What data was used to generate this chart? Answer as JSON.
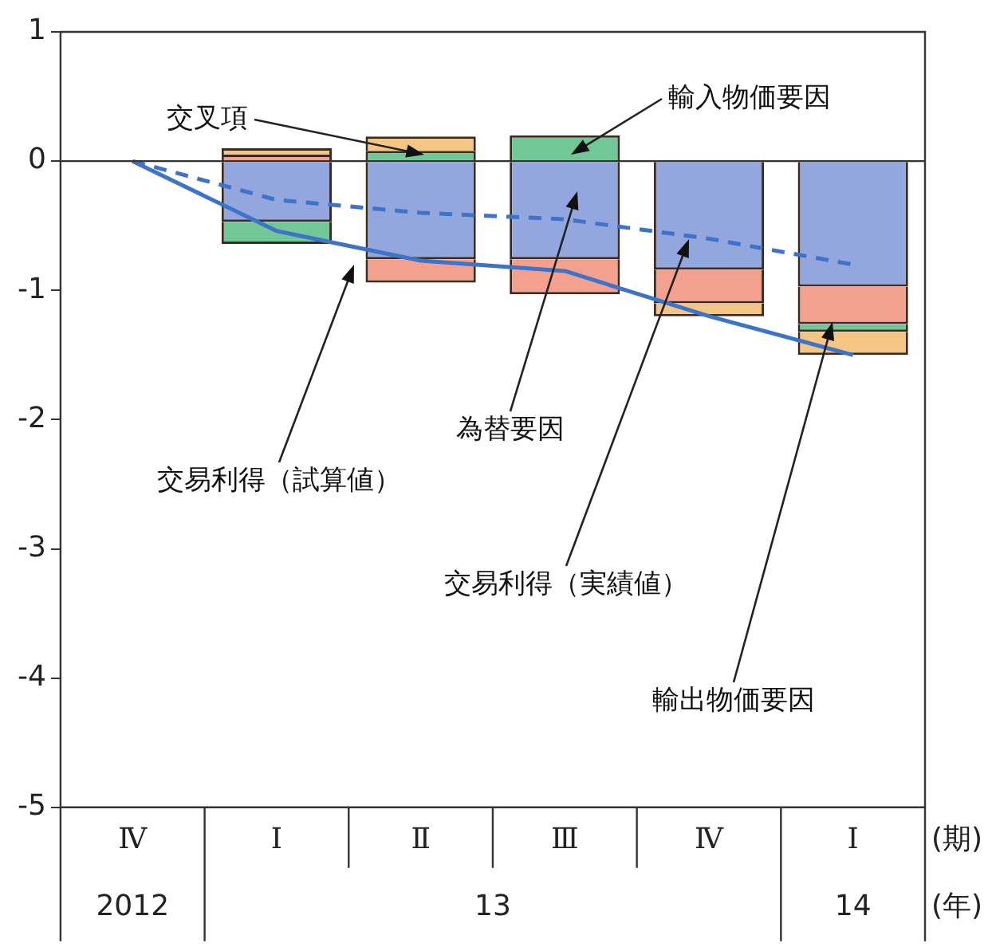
{
  "chart_data": {
    "type": "bar",
    "stacked": true,
    "categories": [
      "Ⅳ",
      "Ⅰ",
      "Ⅱ",
      "Ⅲ",
      "Ⅳ",
      "Ⅰ"
    ],
    "xlabel": "(期)",
    "annotations": [
      "2012",
      "13",
      "14",
      "(年)"
    ],
    "series": [
      {
        "name": "為替要因",
        "color": "#93a6de",
        "values": [
          null,
          -0.47,
          -0.76,
          -0.76,
          -0.84,
          -0.97
        ]
      },
      {
        "name": "輸出物価要因",
        "color": "#f4a08e",
        "values": [
          null,
          0.05,
          -0.18,
          -0.27,
          -0.26,
          -0.29
        ]
      },
      {
        "name": "輸入物価要因",
        "color": "#72c796",
        "values": [
          null,
          -0.17,
          0.08,
          0.2,
          null,
          -0.06
        ]
      },
      {
        "name": "交叉項",
        "color": "#f5c683",
        "values": [
          null,
          0.05,
          0.11,
          null,
          -0.1,
          -0.18
        ]
      },
      {
        "name": "交易利得（試算値）",
        "type": "line",
        "color": "#3d74c9",
        "line_style": "solid",
        "values": [
          0,
          -0.54,
          -0.77,
          -0.85,
          -1.2,
          -1.5
        ]
      },
      {
        "name": "交易利得（実績値）",
        "type": "line",
        "color": "#3d74c9",
        "line_style": "dashed",
        "values": [
          0,
          -0.3,
          -0.4,
          -0.45,
          -0.6,
          -0.8
        ]
      }
    ],
    "ylim": [
      -5,
      1
    ],
    "yticks": [
      1,
      0,
      -1,
      -2,
      -3,
      -4,
      -5
    ],
    "grid": false,
    "legend": false,
    "marker": "none",
    "ref_lines": [
      {
        "axis": "y",
        "value": 0,
        "color": "#333333"
      }
    ]
  }
}
